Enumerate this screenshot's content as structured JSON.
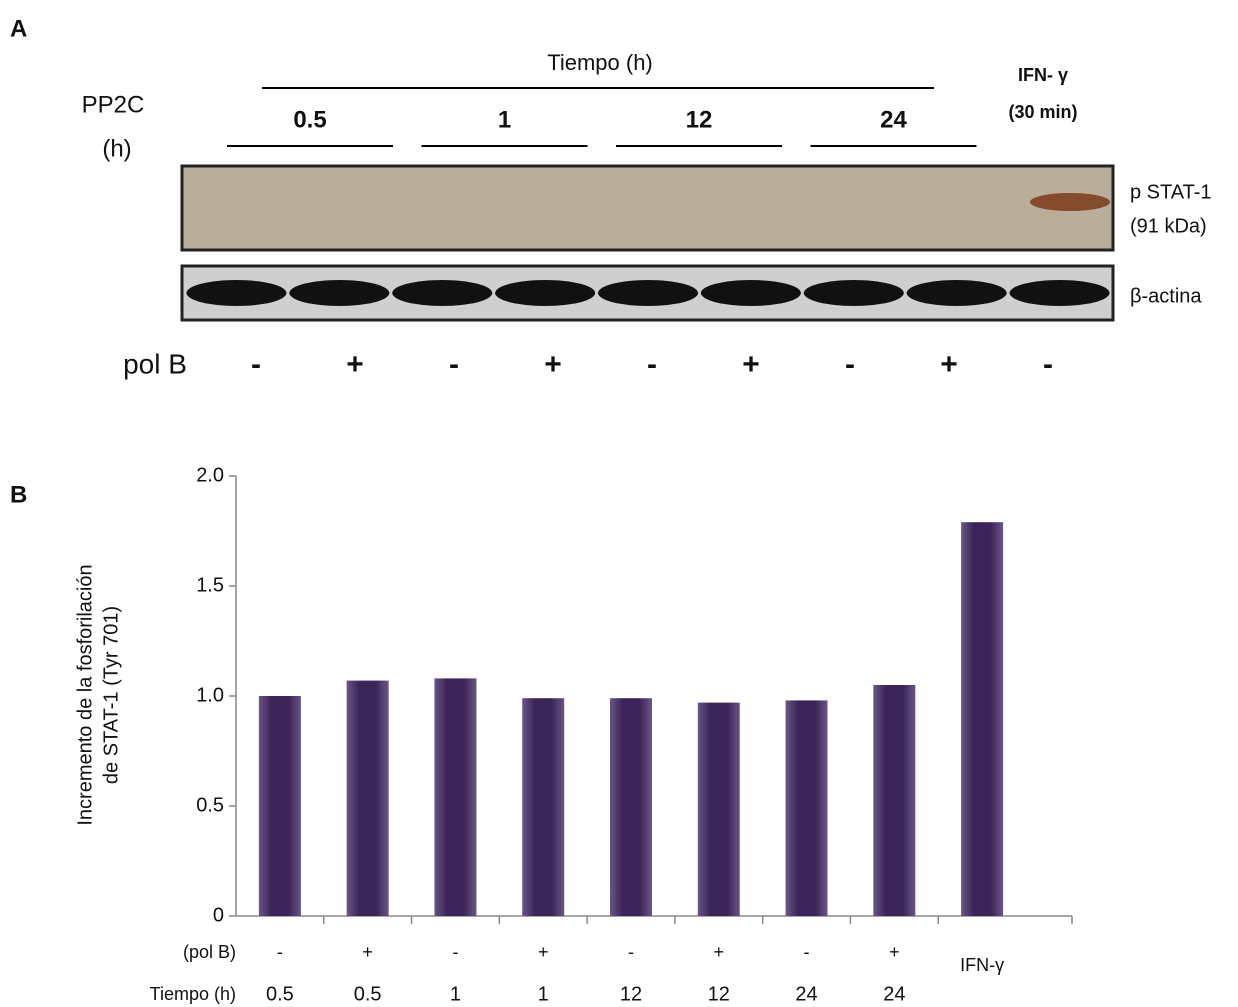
{
  "panel_a": {
    "label": "A",
    "tiempo": "Tiempo (h)",
    "pp2c": [
      "PP2C",
      "(h)"
    ],
    "times": [
      "0.5",
      "1",
      "12",
      "24"
    ],
    "ifn": [
      "IFN- γ",
      "(30 min)"
    ],
    "pstat": [
      "p STAT-1",
      "(91 kDa)"
    ],
    "actina": "β-actina",
    "pol_b_label": "pol B",
    "pol_b": [
      "-",
      "+",
      "-",
      "+",
      "-",
      "+",
      "-",
      "+",
      "-"
    ]
  },
  "panel_b_label": "B",
  "chart_data": {
    "type": "bar",
    "y_label": [
      "Incremento de la fosforilación",
      "de STAT-1 (Tyr 701)"
    ],
    "row_labels": [
      "(pol B)",
      "Tiempo (h)"
    ],
    "categories": [
      "-",
      "+",
      "-",
      "+",
      "-",
      "+",
      "-",
      "+",
      "IFN-γ"
    ],
    "time_labels": [
      "0.5",
      "0.5",
      "1",
      "1",
      "12",
      "12",
      "24",
      "24",
      null
    ],
    "values": [
      1.0,
      1.07,
      1.08,
      0.99,
      0.99,
      0.97,
      0.98,
      1.05,
      1.79
    ],
    "color": "#3b2558",
    "ylim": [
      0,
      2
    ],
    "yticks": [
      0,
      0.5,
      {
        "value": 1,
        "label": "1.0"
      },
      1.5,
      {
        "value": 2,
        "label": "2.0"
      }
    ]
  }
}
